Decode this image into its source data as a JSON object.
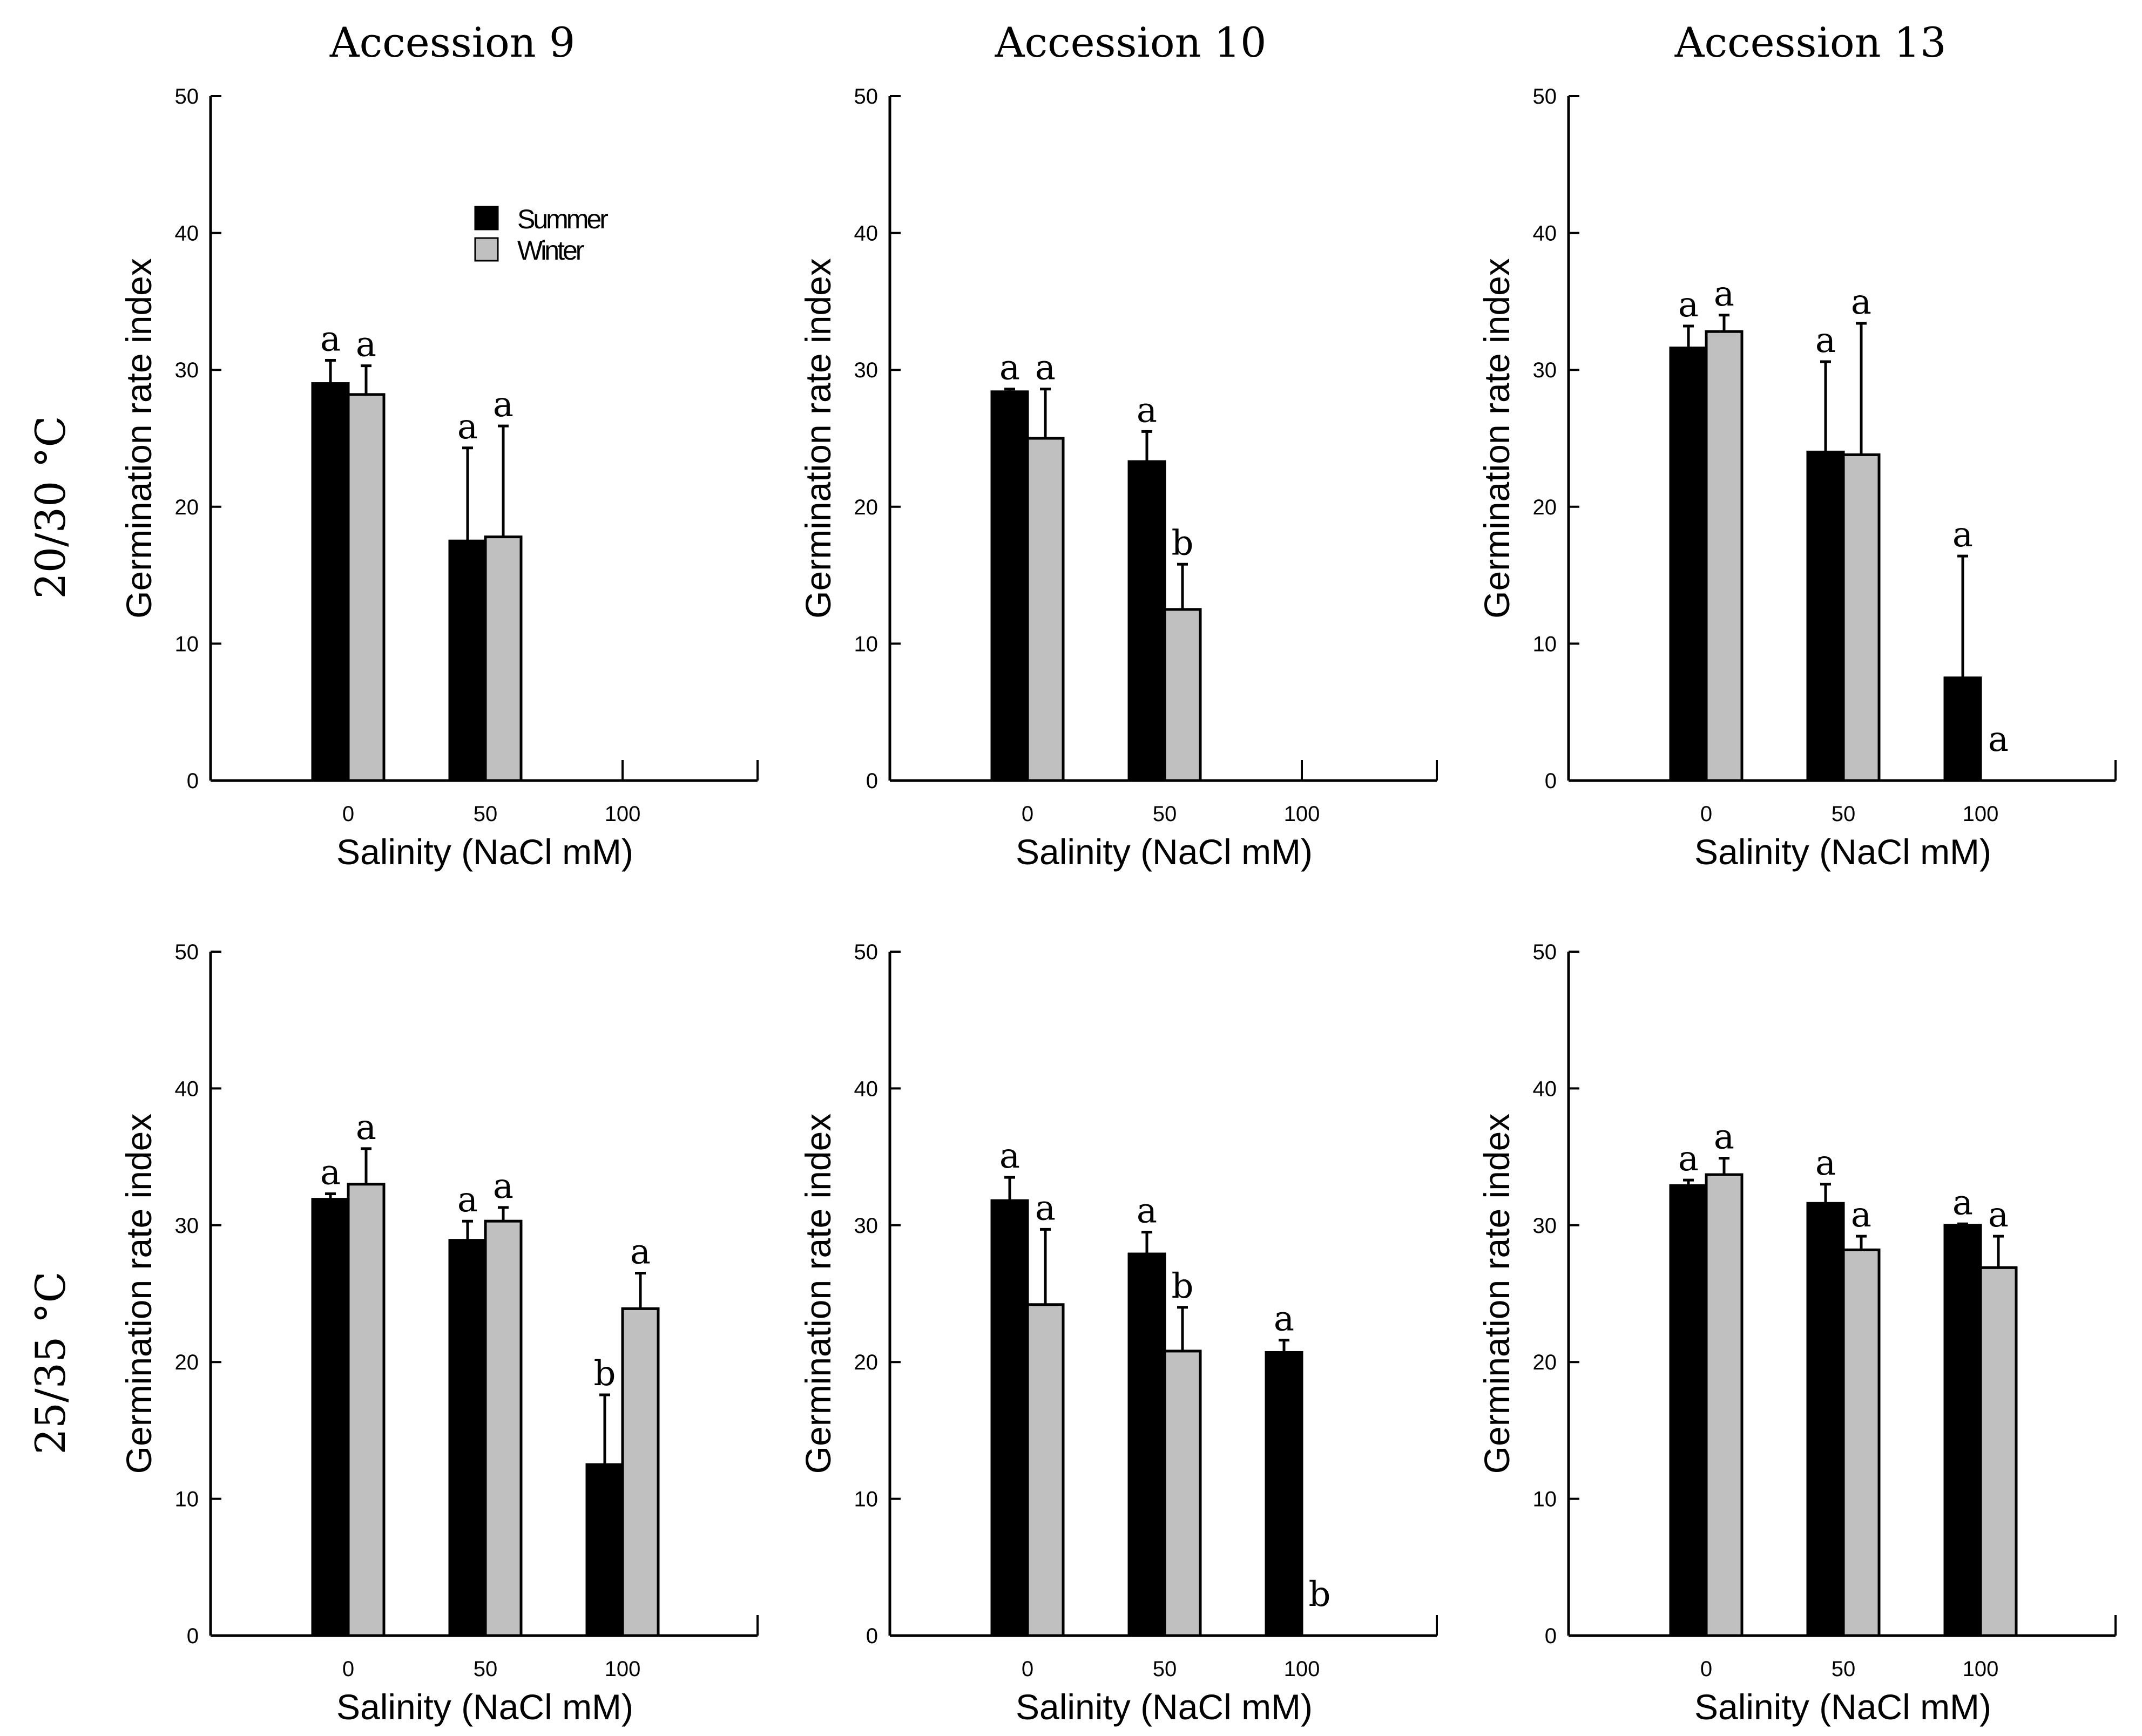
{
  "colors": {
    "summer": "#000000",
    "winter": "#c0c0c0",
    "axis": "#000000"
  },
  "legend": {
    "summer": "Summer",
    "winter": "Winter"
  },
  "column_titles": [
    "Accession 9",
    "Accession 10",
    "Accession 13"
  ],
  "row_labels": [
    "20/30 °C",
    "25/35 °C"
  ],
  "chart_data": [
    {
      "type": "bar",
      "row": 0,
      "col": 0,
      "title": "Accession 9",
      "temperature": "20/30 °C",
      "xlabel": "Salinity (NaCl mM)",
      "ylabel": "Germination rate index",
      "ylim": [
        0,
        50
      ],
      "yticks": [
        0,
        10,
        20,
        30,
        40,
        50
      ],
      "categories": [
        "0",
        "50",
        "100"
      ],
      "legend": true,
      "series": [
        {
          "name": "Summer",
          "values": [
            29.0,
            17.5,
            0
          ],
          "errors": [
            1.7,
            6.8,
            0
          ],
          "letters": [
            "a",
            "a",
            ""
          ]
        },
        {
          "name": "Winter",
          "values": [
            28.2,
            17.8,
            0
          ],
          "errors": [
            2.1,
            8.1,
            0
          ],
          "letters": [
            "a",
            "a",
            ""
          ]
        }
      ]
    },
    {
      "type": "bar",
      "row": 0,
      "col": 1,
      "title": "Accession 10",
      "temperature": "20/30 °C",
      "xlabel": "Salinity (NaCl mM)",
      "ylabel": "Germination rate index",
      "ylim": [
        0,
        50
      ],
      "yticks": [
        0,
        10,
        20,
        30,
        40,
        50
      ],
      "categories": [
        "0",
        "50",
        "100"
      ],
      "legend": false,
      "series": [
        {
          "name": "Summer",
          "values": [
            28.4,
            23.3,
            0
          ],
          "errors": [
            0.2,
            2.2,
            0
          ],
          "letters": [
            "a",
            "a",
            ""
          ]
        },
        {
          "name": "Winter",
          "values": [
            25.0,
            12.5,
            0
          ],
          "errors": [
            3.6,
            3.3,
            0
          ],
          "letters": [
            "a",
            "b",
            ""
          ]
        }
      ]
    },
    {
      "type": "bar",
      "row": 0,
      "col": 2,
      "title": "Accession 13",
      "temperature": "20/30 °C",
      "xlabel": "Salinity (NaCl mM)",
      "ylabel": "Germination rate index",
      "ylim": [
        0,
        50
      ],
      "yticks": [
        0,
        10,
        20,
        30,
        40,
        50
      ],
      "categories": [
        "0",
        "50",
        "100"
      ],
      "legend": false,
      "series": [
        {
          "name": "Summer",
          "values": [
            31.6,
            24.0,
            7.5
          ],
          "errors": [
            1.6,
            6.6,
            8.9
          ],
          "letters": [
            "a",
            "a",
            "a"
          ]
        },
        {
          "name": "Winter",
          "values": [
            32.8,
            23.8,
            0
          ],
          "errors": [
            1.2,
            9.6,
            0
          ],
          "letters": [
            "a",
            "a",
            "a"
          ]
        }
      ]
    },
    {
      "type": "bar",
      "row": 1,
      "col": 0,
      "title": "Accession 9",
      "temperature": "25/35 °C",
      "xlabel": "Salinity (NaCl mM)",
      "ylabel": "Germination rate index",
      "ylim": [
        0,
        50
      ],
      "yticks": [
        0,
        10,
        20,
        30,
        40,
        50
      ],
      "categories": [
        "0",
        "50",
        "100"
      ],
      "legend": false,
      "series": [
        {
          "name": "Summer",
          "values": [
            31.9,
            28.9,
            12.5
          ],
          "errors": [
            0.4,
            1.4,
            5.1
          ],
          "letters": [
            "a",
            "a",
            "b"
          ]
        },
        {
          "name": "Winter",
          "values": [
            33.0,
            30.3,
            23.9
          ],
          "errors": [
            2.6,
            1.0,
            2.6
          ],
          "letters": [
            "a",
            "a",
            "a"
          ]
        }
      ]
    },
    {
      "type": "bar",
      "row": 1,
      "col": 1,
      "title": "Accession 10",
      "temperature": "25/35 °C",
      "xlabel": "Salinity (NaCl mM)",
      "ylabel": "Germination rate index",
      "ylim": [
        0,
        50
      ],
      "yticks": [
        0,
        10,
        20,
        30,
        40,
        50
      ],
      "categories": [
        "0",
        "50",
        "100"
      ],
      "legend": false,
      "series": [
        {
          "name": "Summer",
          "values": [
            31.8,
            27.9,
            20.7
          ],
          "errors": [
            1.7,
            1.6,
            0.9
          ],
          "letters": [
            "a",
            "a",
            "a"
          ]
        },
        {
          "name": "Winter",
          "values": [
            24.2,
            20.8,
            0
          ],
          "errors": [
            5.5,
            3.2,
            0
          ],
          "letters": [
            "a",
            "b",
            "b"
          ]
        }
      ]
    },
    {
      "type": "bar",
      "row": 1,
      "col": 2,
      "title": "Accession 13",
      "temperature": "25/35 °C",
      "xlabel": "Salinity (NaCl mM)",
      "ylabel": "Germination rate index",
      "ylim": [
        0,
        50
      ],
      "yticks": [
        0,
        10,
        20,
        30,
        40,
        50
      ],
      "categories": [
        "0",
        "50",
        "100"
      ],
      "legend": false,
      "series": [
        {
          "name": "Summer",
          "values": [
            32.9,
            31.6,
            30.0
          ],
          "errors": [
            0.4,
            1.4,
            0.1
          ],
          "letters": [
            "a",
            "a",
            "a"
          ]
        },
        {
          "name": "Winter",
          "values": [
            33.7,
            28.2,
            26.9
          ],
          "errors": [
            1.2,
            1.0,
            2.3
          ],
          "letters": [
            "a",
            "a",
            "a"
          ]
        }
      ]
    }
  ]
}
